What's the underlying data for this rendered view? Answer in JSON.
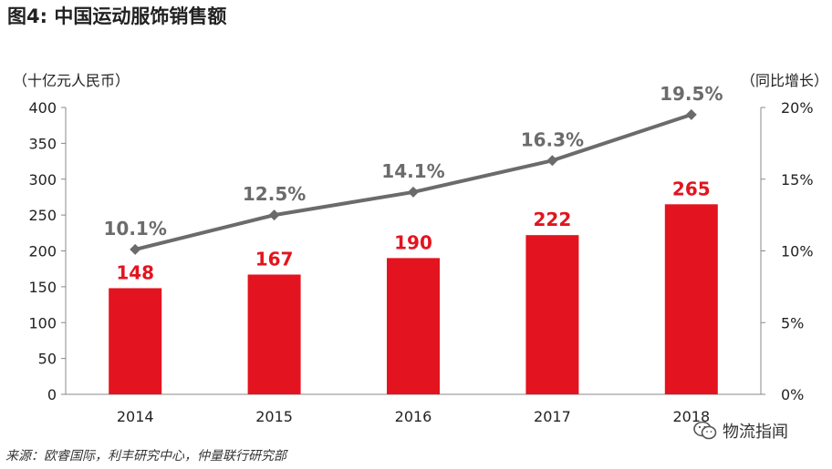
{
  "title": "图4: 中国运动服饰销售额",
  "left_unit": "（十亿元人民币）",
  "right_unit": "（同比增长）",
  "source": "来源：欧睿国际，利丰研究中心，仲量联行研究部",
  "watermark": "物流指闻",
  "colors": {
    "bar": "#e3141f",
    "line": "#6b6b6b"
  },
  "chart_data": {
    "type": "bar",
    "categories": [
      "2014",
      "2015",
      "2016",
      "2017",
      "2018"
    ],
    "series": [
      {
        "type": "bar",
        "values": [
          148,
          167,
          190,
          222,
          265
        ],
        "labels": [
          "148",
          "167",
          "190",
          "222",
          "265"
        ]
      },
      {
        "type": "line",
        "values": [
          10.1,
          12.5,
          14.1,
          16.3,
          19.5
        ],
        "labels": [
          "10.1%",
          "12.5%",
          "14.1%",
          "16.3%",
          "19.5%"
        ]
      }
    ],
    "y_left": {
      "ylim": [
        0,
        400
      ],
      "ticks": [
        "0",
        "50",
        "100",
        "150",
        "200",
        "250",
        "300",
        "350",
        "400"
      ]
    },
    "y_right": {
      "ylim": [
        0,
        20
      ],
      "ticks": [
        "0%",
        "5%",
        "10%",
        "15%",
        "20%"
      ]
    },
    "grid": false
  }
}
